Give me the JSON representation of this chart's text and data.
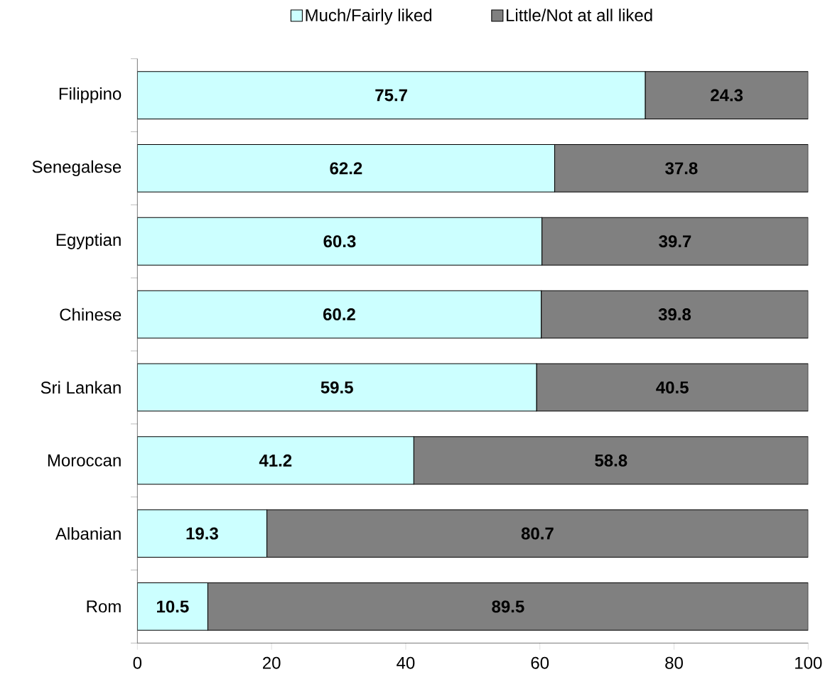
{
  "chart_data": {
    "type": "bar",
    "orientation": "horizontal",
    "stacked": true,
    "data_labels": true,
    "legend": "top",
    "grid": false,
    "categories": [
      "Filippino",
      "Senegalese",
      "Egyptian",
      "Chinese",
      "Sri Lankan",
      "Moroccan",
      "Albanian",
      "Rom"
    ],
    "series": [
      {
        "name": "Much/Fairly liked",
        "color": "#ccffff",
        "values": [
          75.7,
          62.2,
          60.3,
          60.2,
          59.5,
          41.2,
          19.3,
          10.5
        ]
      },
      {
        "name": "Little/Not at all liked",
        "color": "#808080",
        "values": [
          24.3,
          37.8,
          39.7,
          39.8,
          40.5,
          58.8,
          80.7,
          89.5
        ]
      }
    ],
    "xlim": [
      0,
      100
    ],
    "xticks": [
      0,
      20,
      40,
      60,
      80,
      100
    ]
  }
}
